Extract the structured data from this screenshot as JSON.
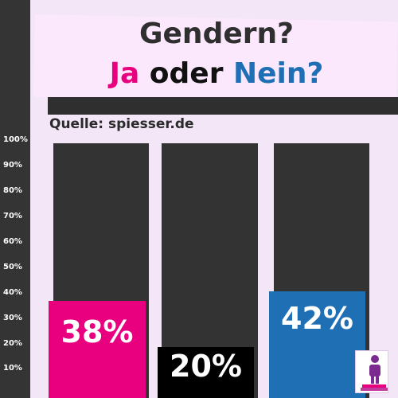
{
  "title": {
    "line1": "Gendern?",
    "ja": "Ja",
    "oder": "oder",
    "nein": "Nein?"
  },
  "source": "Quelle: spiesser.de",
  "icon": "person-podium-icon",
  "chart_data": {
    "type": "bar",
    "categories": [
      "Ja",
      "",
      "Nein"
    ],
    "values": [
      38,
      20,
      42
    ],
    "labels": [
      "38%",
      "20%",
      "42%"
    ],
    "colors": [
      "#e9007f",
      "#000000",
      "#1f6fb4"
    ],
    "ylim": [
      0,
      100
    ],
    "yticks": [
      "10%",
      "20%",
      "30%",
      "40%",
      "50%",
      "60%",
      "70%",
      "80%",
      "90%",
      "100%"
    ],
    "grid": false
  }
}
